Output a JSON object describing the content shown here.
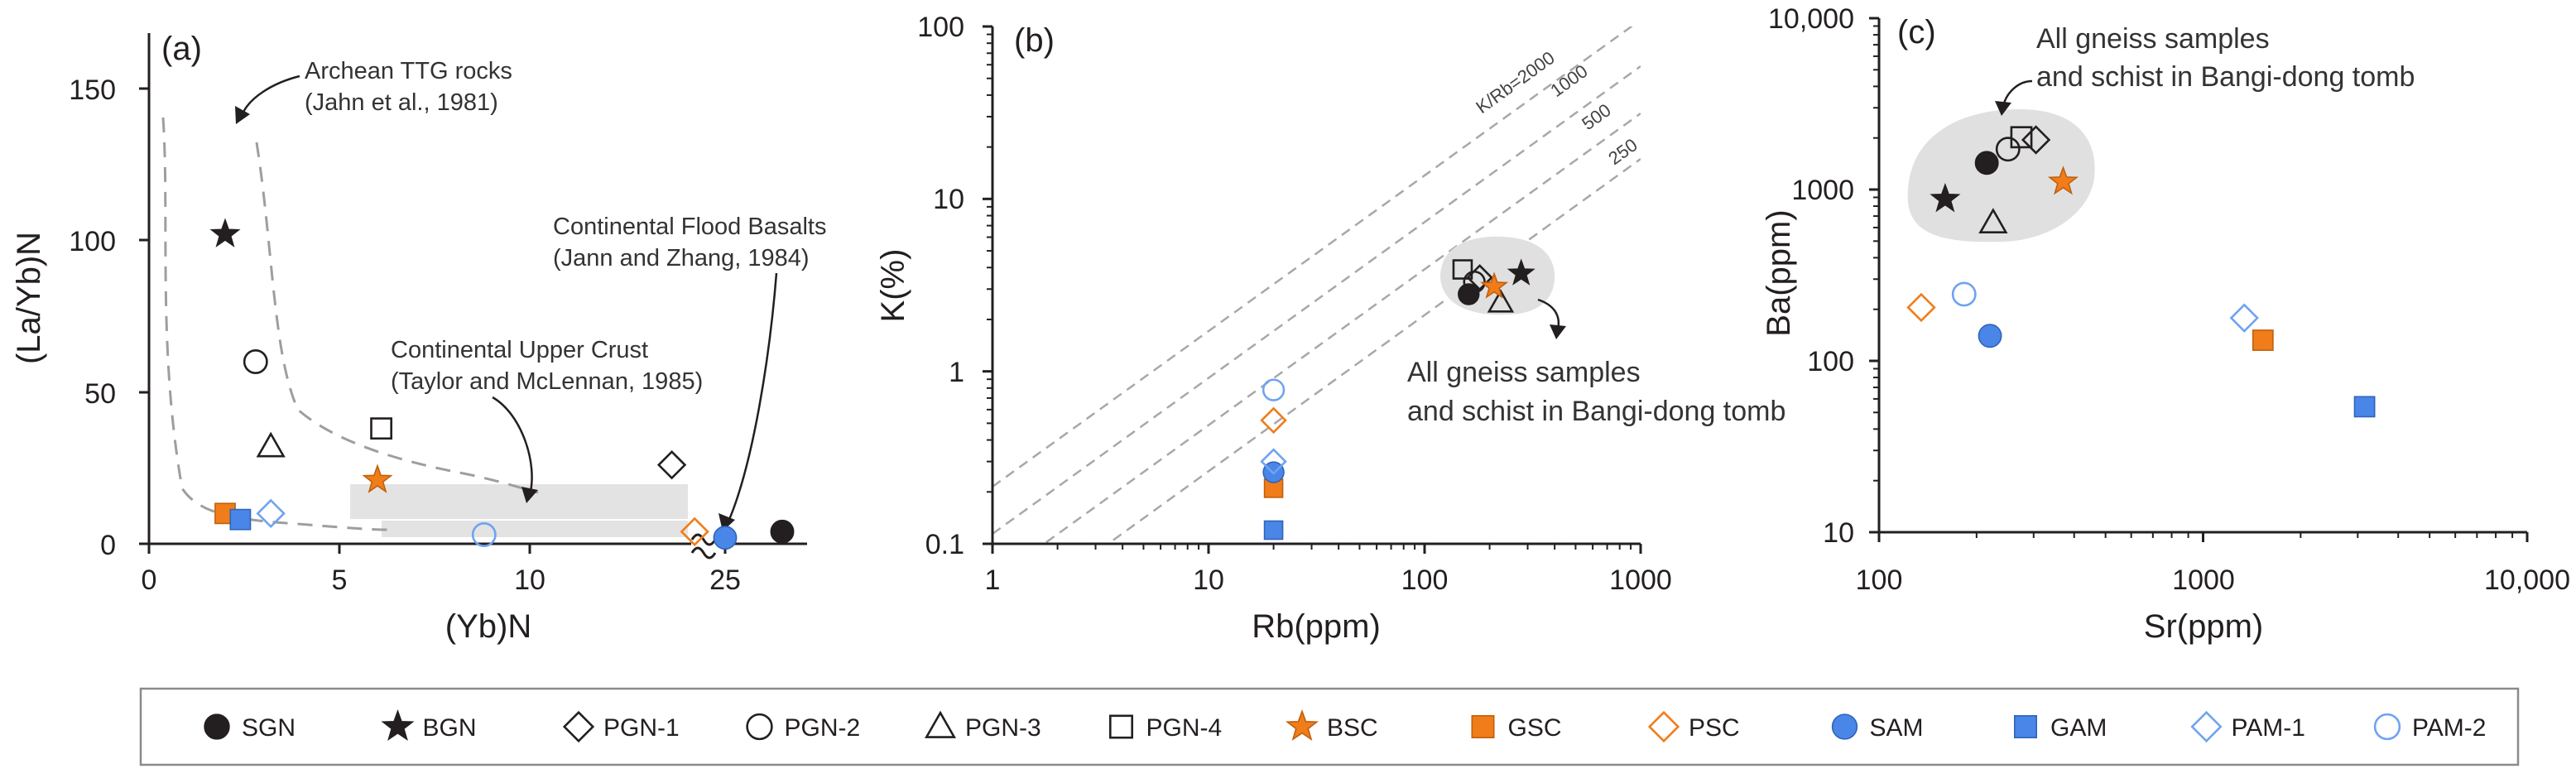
{
  "colors": {
    "black": "#231f20",
    "orange": "#f07d1a",
    "blue": "#4a86e8",
    "lightblue": "#6fa3f0",
    "shade": "#e3e3e3",
    "dash": "#9e9e9e"
  },
  "legend": [
    {
      "key": "SGN",
      "label": "SGN",
      "marker": "circle",
      "fill": "#231f20",
      "stroke": "#231f20"
    },
    {
      "key": "BGN",
      "label": "BGN",
      "marker": "star",
      "fill": "#231f20",
      "stroke": "#231f20"
    },
    {
      "key": "PGN-1",
      "label": "PGN-1",
      "marker": "diamond",
      "fill": "none",
      "stroke": "#231f20"
    },
    {
      "key": "PGN-2",
      "label": "PGN-2",
      "marker": "circle",
      "fill": "none",
      "stroke": "#231f20"
    },
    {
      "key": "PGN-3",
      "label": "PGN-3",
      "marker": "triangle",
      "fill": "none",
      "stroke": "#231f20"
    },
    {
      "key": "PGN-4",
      "label": "PGN-4",
      "marker": "square",
      "fill": "none",
      "stroke": "#231f20"
    },
    {
      "key": "BSC",
      "label": "BSC",
      "marker": "star",
      "fill": "#f07d1a",
      "stroke": "#c0600c"
    },
    {
      "key": "GSC",
      "label": "GSC",
      "marker": "square",
      "fill": "#f07d1a",
      "stroke": "#c0600c"
    },
    {
      "key": "PSC",
      "label": "PSC",
      "marker": "diamond",
      "fill": "none",
      "stroke": "#f07d1a"
    },
    {
      "key": "SAM",
      "label": "SAM",
      "marker": "circle",
      "fill": "#4a86e8",
      "stroke": "#2f64b8"
    },
    {
      "key": "GAM",
      "label": "GAM",
      "marker": "square",
      "fill": "#4a86e8",
      "stroke": "#2f64b8"
    },
    {
      "key": "PAM-1",
      "label": "PAM-1",
      "marker": "diamond",
      "fill": "none",
      "stroke": "#6fa3f0"
    },
    {
      "key": "PAM-2",
      "label": "PAM-2",
      "marker": "circle",
      "fill": "none",
      "stroke": "#6fa3f0"
    }
  ],
  "chart_data": [
    {
      "panel": "(a)",
      "type": "scatter",
      "xlabel": "(Yb)N",
      "ylabel": "(La/Yb)N",
      "xlim": [
        0,
        28
      ],
      "ylim": [
        0,
        160
      ],
      "xticks": [
        "0",
        "5",
        "10",
        "25"
      ],
      "yticks": [
        "0",
        "50",
        "100",
        "150"
      ],
      "axis_break": "between 10 and 25",
      "annotations": {
        "ttg": [
          "Archean TTG rocks",
          "(Jahn et al., 1981)"
        ],
        "flood": [
          "Continental Flood Basalts",
          "(Jann and Zhang, 1984)"
        ],
        "upper": [
          "Continental Upper Crust",
          "(Taylor and McLennan, 1985)"
        ]
      },
      "points": [
        {
          "sample": "SGN",
          "x": 26.5,
          "y": 4
        },
        {
          "sample": "BGN",
          "x": 2.0,
          "y": 102
        },
        {
          "sample": "PGN-1",
          "x": 23.6,
          "y": 26
        },
        {
          "sample": "PGN-2",
          "x": 2.8,
          "y": 60
        },
        {
          "sample": "PGN-3",
          "x": 3.2,
          "y": 32
        },
        {
          "sample": "PGN-4",
          "x": 6.1,
          "y": 38
        },
        {
          "sample": "BSC",
          "x": 6.0,
          "y": 21
        },
        {
          "sample": "GSC",
          "x": 2.0,
          "y": 10
        },
        {
          "sample": "PSC",
          "x": 24.2,
          "y": 4
        },
        {
          "sample": "SAM",
          "x": 25.0,
          "y": 2
        },
        {
          "sample": "GAM",
          "x": 2.4,
          "y": 8
        },
        {
          "sample": "PAM-1",
          "x": 3.2,
          "y": 10
        },
        {
          "sample": "PAM-2",
          "x": 8.8,
          "y": 3
        }
      ]
    },
    {
      "panel": "(b)",
      "type": "scatter",
      "xlabel": "Rb(ppm)",
      "ylabel": "K(%)",
      "xscale": "log",
      "yscale": "log",
      "xlim": [
        1,
        1000
      ],
      "ylim": [
        0.1,
        100
      ],
      "xticks": [
        "1",
        "10",
        "100",
        "1000"
      ],
      "yticks": [
        "0.1",
        "1",
        "10",
        "100"
      ],
      "ratio_lines": [
        "K/Rb=2000",
        "1000",
        "500",
        "250"
      ],
      "annotation": [
        "All gneiss samples",
        "and schist in Bangi-dong tomb"
      ],
      "points": [
        {
          "sample": "SGN",
          "x": 160,
          "y": 2.8
        },
        {
          "sample": "BGN",
          "x": 280,
          "y": 3.7
        },
        {
          "sample": "PGN-1",
          "x": 180,
          "y": 3.5
        },
        {
          "sample": "PGN-2",
          "x": 170,
          "y": 3.3
        },
        {
          "sample": "PGN-3",
          "x": 225,
          "y": 2.5
        },
        {
          "sample": "PGN-4",
          "x": 150,
          "y": 3.9
        },
        {
          "sample": "BSC",
          "x": 210,
          "y": 3.1
        },
        {
          "sample": "GSC",
          "x": 20,
          "y": 0.21
        },
        {
          "sample": "PSC",
          "x": 20,
          "y": 0.52
        },
        {
          "sample": "SAM",
          "x": 20,
          "y": 0.26
        },
        {
          "sample": "GAM",
          "x": 20,
          "y": 0.12
        },
        {
          "sample": "PAM-1",
          "x": 20,
          "y": 0.3
        },
        {
          "sample": "PAM-2",
          "x": 20,
          "y": 0.78
        }
      ]
    },
    {
      "panel": "(c)",
      "type": "scatter",
      "xlabel": "Sr(ppm)",
      "ylabel": "Ba(ppm)",
      "xscale": "log",
      "yscale": "log",
      "xlim": [
        100,
        10000
      ],
      "ylim": [
        10,
        10000
      ],
      "xticks": [
        "100",
        "1000",
        "10,000"
      ],
      "yticks": [
        "10",
        "100",
        "1000",
        "10,000"
      ],
      "annotation": [
        "All gneiss samples",
        "and schist in Bangi-dong tomb"
      ],
      "points": [
        {
          "sample": "SGN",
          "x": 215,
          "y": 1430
        },
        {
          "sample": "BGN",
          "x": 160,
          "y": 880
        },
        {
          "sample": "PGN-1",
          "x": 305,
          "y": 1950
        },
        {
          "sample": "PGN-2",
          "x": 250,
          "y": 1720
        },
        {
          "sample": "PGN-3",
          "x": 225,
          "y": 640
        },
        {
          "sample": "PGN-4",
          "x": 275,
          "y": 2020
        },
        {
          "sample": "BSC",
          "x": 370,
          "y": 1110
        },
        {
          "sample": "GSC",
          "x": 1530,
          "y": 132
        },
        {
          "sample": "PSC",
          "x": 135,
          "y": 205
        },
        {
          "sample": "SAM",
          "x": 220,
          "y": 140
        },
        {
          "sample": "GAM",
          "x": 3150,
          "y": 54
        },
        {
          "sample": "PAM-1",
          "x": 1340,
          "y": 178
        },
        {
          "sample": "PAM-2",
          "x": 183,
          "y": 245
        }
      ]
    }
  ]
}
